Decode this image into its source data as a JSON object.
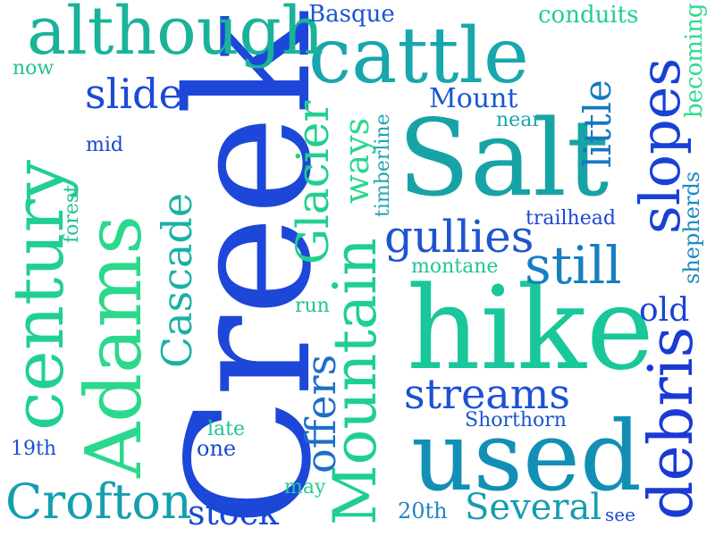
{
  "words": {
    "creek": "Creek",
    "salt": "Salt",
    "hike": "hike",
    "used": "used",
    "cattle": "cattle",
    "although": "although",
    "century": "century",
    "adams": "Adams",
    "mountain": "Mountain",
    "slopes": "slopes",
    "debris": "debris",
    "crofton": "Crofton",
    "gullies": "gullies",
    "still": "still",
    "streams": "streams",
    "slide": "slide",
    "glacier": "Glacier",
    "cascade": "Cascade",
    "offers": "offers",
    "little": "little",
    "several": "Several",
    "stock": "stock",
    "ways": "ways",
    "mount": "Mount",
    "old": "old",
    "basque": "Basque",
    "conduits": "conduits",
    "becoming": "becoming",
    "now": "now",
    "mid": "mid",
    "forest": "forest",
    "near": "near",
    "timberline": "timberline",
    "trailhead": "trailhead",
    "montane": "montane",
    "shepherds": "shepherds",
    "run": "run",
    "shorthorn": "Shorthorn",
    "late": "late",
    "one": "one",
    "nineteenth": "19th",
    "twentieth": "20th",
    "may": "may",
    "see": "see"
  },
  "colors": {
    "blue": "#1a3fd8",
    "royal": "#1f5fd0",
    "teal": "#0aa6b0",
    "aqua": "#14b89a",
    "green": "#20d88e",
    "mint": "#2fe08a",
    "steel": "#1f7fc4"
  }
}
